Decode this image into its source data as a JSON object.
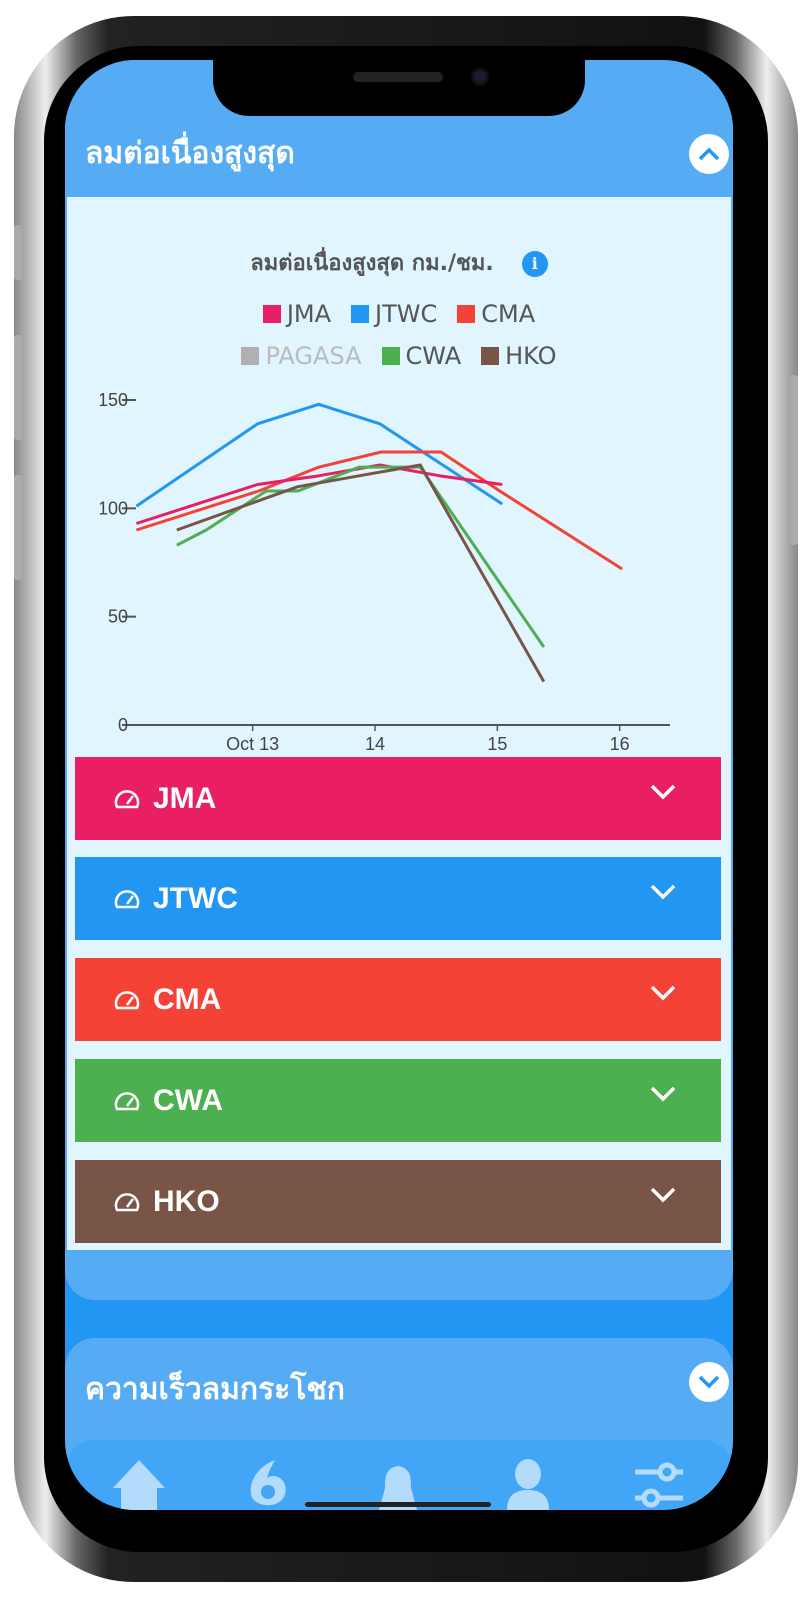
{
  "section1": {
    "title": "ลมต่อเนื่องสูงสุด",
    "toggle_icon": "chevron-up-icon"
  },
  "chart_title": "ลมต่อเนื่องสูงสุด กม./ชม.",
  "legend": [
    {
      "name": "JMA",
      "color": "#E91E63",
      "active": true
    },
    {
      "name": "JTWC",
      "color": "#2196F3",
      "active": true
    },
    {
      "name": "CMA",
      "color": "#F44336",
      "active": true
    },
    {
      "name": "PAGASA",
      "color": "#B0B0B0",
      "active": false
    },
    {
      "name": "CWA",
      "color": "#4CAF50",
      "active": true
    },
    {
      "name": "HKO",
      "color": "#795548",
      "active": true
    }
  ],
  "chart_data": {
    "type": "line",
    "title": "ลมต่อเนื่องสูงสุด กม./ชม.",
    "x_unit": "day of October",
    "xticks": [
      {
        "x": 13,
        "label": "Oct 13"
      },
      {
        "x": 14,
        "label": "14"
      },
      {
        "x": 15,
        "label": "15"
      },
      {
        "x": 16,
        "label": "16"
      }
    ],
    "yticks": [
      0,
      50,
      100,
      150
    ],
    "ylim": [
      0,
      150
    ],
    "xlim": [
      12.05,
      16.02
    ],
    "grid": false,
    "legend_position": "top",
    "series": [
      {
        "name": "JTWC",
        "color": "#2196F3",
        "points": [
          [
            12.05,
            101
          ],
          [
            13.04,
            139
          ],
          [
            13.54,
            148
          ],
          [
            14.04,
            139
          ],
          [
            15.04,
            102
          ]
        ]
      },
      {
        "name": "CMA",
        "color": "#F44336",
        "points": [
          [
            12.05,
            90
          ],
          [
            13.05,
            108
          ],
          [
            13.54,
            119
          ],
          [
            14.05,
            126
          ],
          [
            14.54,
            126
          ],
          [
            15.02,
            108
          ],
          [
            16.02,
            72
          ]
        ]
      },
      {
        "name": "JMA",
        "color": "#E91E63",
        "points": [
          [
            12.05,
            93
          ],
          [
            13.04,
            111
          ],
          [
            13.54,
            115
          ],
          [
            14.04,
            120
          ],
          [
            14.53,
            115
          ],
          [
            15.04,
            111
          ]
        ]
      },
      {
        "name": "CWA",
        "color": "#4CAF50",
        "points": [
          [
            12.38,
            83
          ],
          [
            12.62,
            90
          ],
          [
            13.11,
            108
          ],
          [
            13.37,
            108
          ],
          [
            13.87,
            119
          ],
          [
            14.37,
            119
          ],
          [
            15.38,
            36
          ]
        ]
      },
      {
        "name": "HKO",
        "color": "#795548",
        "points": [
          [
            12.38,
            90
          ],
          [
            13.37,
            110
          ],
          [
            14.37,
            120
          ],
          [
            15.38,
            20
          ]
        ]
      }
    ]
  },
  "agencies": [
    {
      "label": "JMA",
      "color": "#E91E63"
    },
    {
      "label": "JTWC",
      "color": "#2196F3"
    },
    {
      "label": "CMA",
      "color": "#F44336"
    },
    {
      "label": "CWA",
      "color": "#4CAF50"
    },
    {
      "label": "HKO",
      "color": "#795548"
    }
  ],
  "section2": {
    "title": "ความเร็วลมกระโชก",
    "toggle_icon": "chevron-down-icon"
  },
  "nav": [
    "home-icon",
    "typhoon-icon",
    "bell-icon",
    "user-icon",
    "sliders-icon"
  ]
}
